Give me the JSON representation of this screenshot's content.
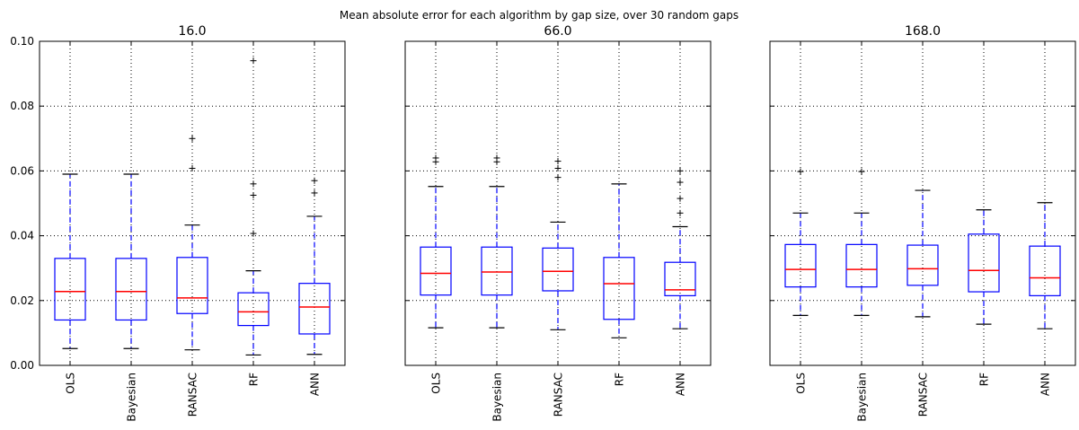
{
  "figure_title": "Mean absolute error for each algorithm by gap size, over 30 random gaps",
  "colors": {
    "box": "#0000ff",
    "median": "#ff0000",
    "whisker": "#0000ff",
    "cap": "#000000",
    "flier": "#000000",
    "grid": "#000000"
  },
  "chart_data": {
    "type": "box",
    "title": "Mean absolute error for each algorithm by gap size, over 30 random gaps",
    "categories": [
      "OLS",
      "Bayesian",
      "RANSAC",
      "RF",
      "ANN"
    ],
    "ylim": [
      0.0,
      0.1
    ],
    "yticks": [
      "0.00",
      "0.02",
      "0.04",
      "0.06",
      "0.08",
      "0.10"
    ],
    "grid": true,
    "sharey": true,
    "panels": [
      {
        "title": "16.0",
        "boxes": [
          {
            "name": "OLS",
            "whislo": 0.0052,
            "q1": 0.014,
            "med": 0.0228,
            "q3": 0.033,
            "whishi": 0.059,
            "fliers": []
          },
          {
            "name": "Bayesian",
            "whislo": 0.0052,
            "q1": 0.014,
            "med": 0.0228,
            "q3": 0.033,
            "whishi": 0.059,
            "fliers": []
          },
          {
            "name": "RANSAC",
            "whislo": 0.0048,
            "q1": 0.016,
            "med": 0.0208,
            "q3": 0.0333,
            "whishi": 0.0433,
            "fliers": [
              0.0608,
              0.07
            ]
          },
          {
            "name": "RF",
            "whislo": 0.0032,
            "q1": 0.0123,
            "med": 0.0165,
            "q3": 0.0224,
            "whishi": 0.0292,
            "fliers": [
              0.0407,
              0.0525,
              0.056,
              0.094
            ]
          },
          {
            "name": "ANN",
            "whislo": 0.0034,
            "q1": 0.0097,
            "med": 0.018,
            "q3": 0.0253,
            "whishi": 0.046,
            "fliers": [
              0.0532,
              0.057
            ]
          }
        ]
      },
      {
        "title": "66.0",
        "boxes": [
          {
            "name": "OLS",
            "whislo": 0.0116,
            "q1": 0.0217,
            "med": 0.0284,
            "q3": 0.0365,
            "whishi": 0.0552,
            "fliers": [
              0.0628,
              0.064
            ]
          },
          {
            "name": "Bayesian",
            "whislo": 0.0116,
            "q1": 0.0217,
            "med": 0.0288,
            "q3": 0.0365,
            "whishi": 0.0552,
            "fliers": [
              0.0628,
              0.064
            ]
          },
          {
            "name": "RANSAC",
            "whislo": 0.011,
            "q1": 0.023,
            "med": 0.029,
            "q3": 0.0362,
            "whishi": 0.0442,
            "fliers": [
              0.058,
              0.0608,
              0.063
            ]
          },
          {
            "name": "RF",
            "whislo": 0.0085,
            "q1": 0.0142,
            "med": 0.0252,
            "q3": 0.0333,
            "whishi": 0.056,
            "fliers": []
          },
          {
            "name": "ANN",
            "whislo": 0.0113,
            "q1": 0.0215,
            "med": 0.0233,
            "q3": 0.0318,
            "whishi": 0.0428,
            "fliers": [
              0.047,
              0.0515,
              0.0565,
              0.06
            ]
          }
        ]
      },
      {
        "title": "168.0",
        "boxes": [
          {
            "name": "OLS",
            "whislo": 0.0154,
            "q1": 0.0242,
            "med": 0.0296,
            "q3": 0.0373,
            "whishi": 0.047,
            "fliers": [
              0.0598
            ]
          },
          {
            "name": "Bayesian",
            "whislo": 0.0154,
            "q1": 0.0242,
            "med": 0.0296,
            "q3": 0.0373,
            "whishi": 0.047,
            "fliers": [
              0.0598
            ]
          },
          {
            "name": "RANSAC",
            "whislo": 0.015,
            "q1": 0.0247,
            "med": 0.0298,
            "q3": 0.0371,
            "whishi": 0.054,
            "fliers": []
          },
          {
            "name": "RF",
            "whislo": 0.0127,
            "q1": 0.0227,
            "med": 0.0293,
            "q3": 0.0405,
            "whishi": 0.048,
            "fliers": []
          },
          {
            "name": "ANN",
            "whislo": 0.0113,
            "q1": 0.0215,
            "med": 0.027,
            "q3": 0.0368,
            "whishi": 0.0502,
            "fliers": []
          }
        ]
      }
    ]
  }
}
